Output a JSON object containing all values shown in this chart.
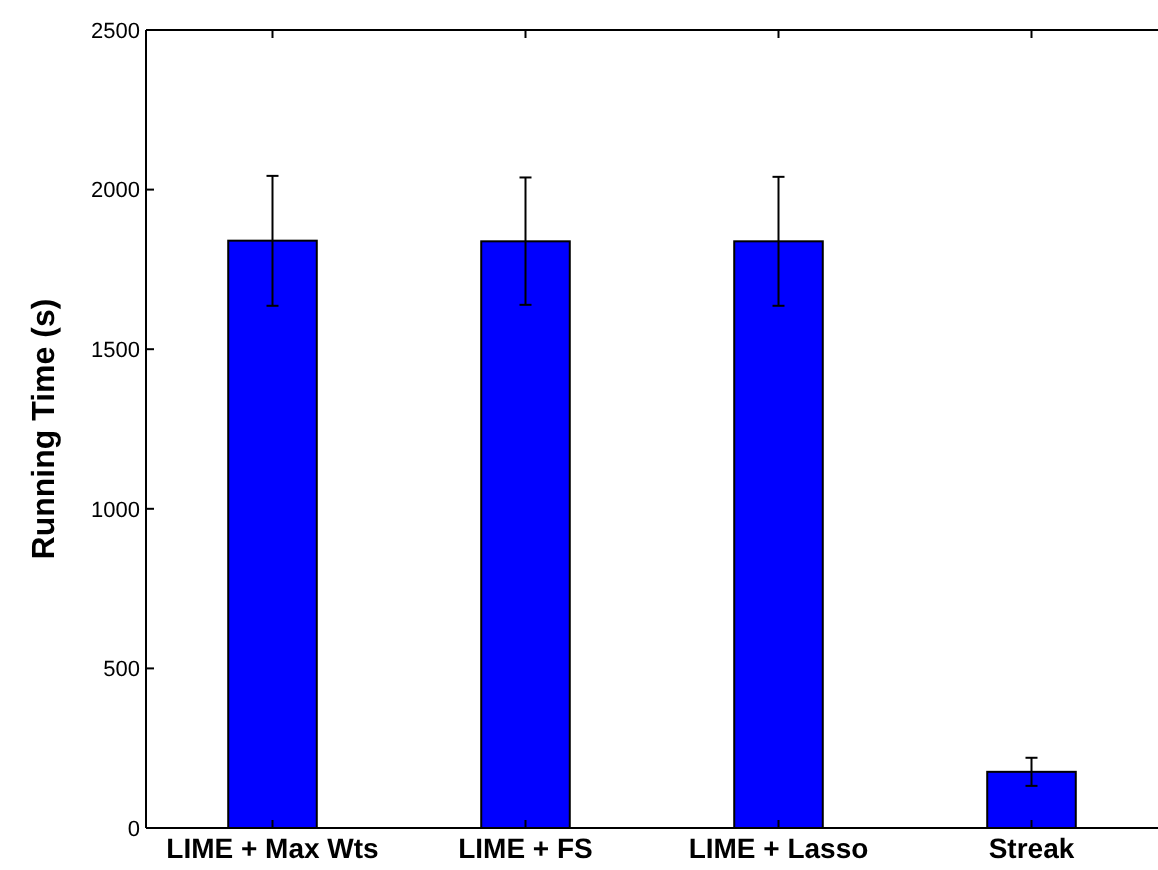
{
  "chart_data": {
    "type": "bar",
    "ylabel": "Running Time (s)",
    "categories": [
      "LIME + Max Wts",
      "LIME + FS",
      "LIME + Lasso",
      "Streak"
    ],
    "values": [
      1840,
      1838,
      1838,
      176
    ],
    "errors": [
      [
        1636,
        2043
      ],
      [
        1639,
        2038
      ],
      [
        1636,
        2040
      ],
      [
        132,
        220
      ]
    ],
    "color": "#0000ff",
    "ylim": [
      0,
      2500
    ],
    "yticks": [
      0,
      500,
      1000,
      1500,
      2000,
      2500
    ],
    "grid": false
  }
}
